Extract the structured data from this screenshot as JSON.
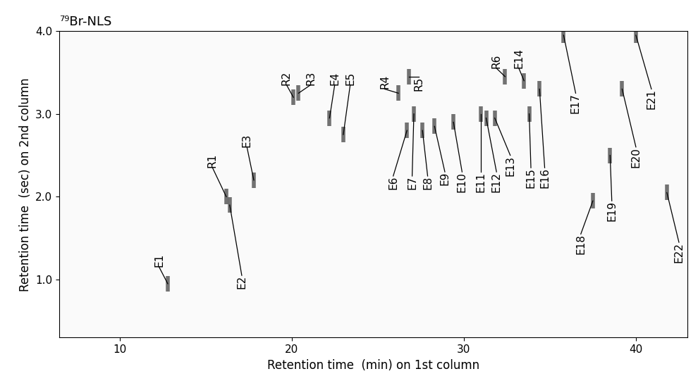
{
  "chart_data": {
    "type": "scatter",
    "title": "⁷⁹Br-NLS",
    "x_label": "Retention time  (min) on 1st column",
    "y_label": "Retention time  (sec) on 2nd column",
    "color": "#505050",
    "marker": "|",
    "grid": false,
    "xlim": [
      6.5,
      43
    ],
    "xticks": [
      10,
      20,
      30,
      40
    ],
    "ylim": [
      0.3,
      4.0
    ],
    "yticks": [
      {
        "value": 1.0,
        "label": "1.0"
      },
      {
        "value": 2.0,
        "label": "2.0"
      },
      {
        "value": 3.0,
        "label": "3.0"
      },
      {
        "value": 4.0,
        "label": "4.0"
      }
    ],
    "labels": [
      "E1",
      "R1",
      "E2",
      "E3",
      "R2",
      "R3",
      "E4",
      "E5",
      "R4",
      "R5",
      "E6",
      "E7",
      "E8",
      "E9",
      "E10",
      "E11",
      "E12",
      "E13",
      "R6",
      "E14",
      "E15",
      "E16",
      "E17",
      "E18",
      "E19",
      "E20",
      "E21",
      "E22"
    ],
    "x": [
      12.8,
      16.2,
      16.4,
      17.8,
      20.1,
      20.4,
      22.2,
      23.0,
      26.2,
      26.8,
      26.7,
      27.1,
      27.6,
      28.3,
      29.4,
      31.0,
      31.3,
      31.8,
      32.4,
      33.5,
      33.8,
      34.4,
      35.8,
      37.5,
      38.5,
      39.2,
      40.0,
      41.8
    ],
    "y": [
      0.95,
      2.0,
      1.9,
      2.2,
      3.2,
      3.25,
      2.95,
      2.75,
      3.25,
      3.45,
      2.8,
      3.0,
      2.8,
      2.85,
      2.9,
      3.0,
      2.95,
      2.95,
      3.45,
      3.4,
      3.0,
      3.3,
      3.95,
      1.95,
      2.5,
      3.3,
      3.95,
      2.05
    ]
  }
}
